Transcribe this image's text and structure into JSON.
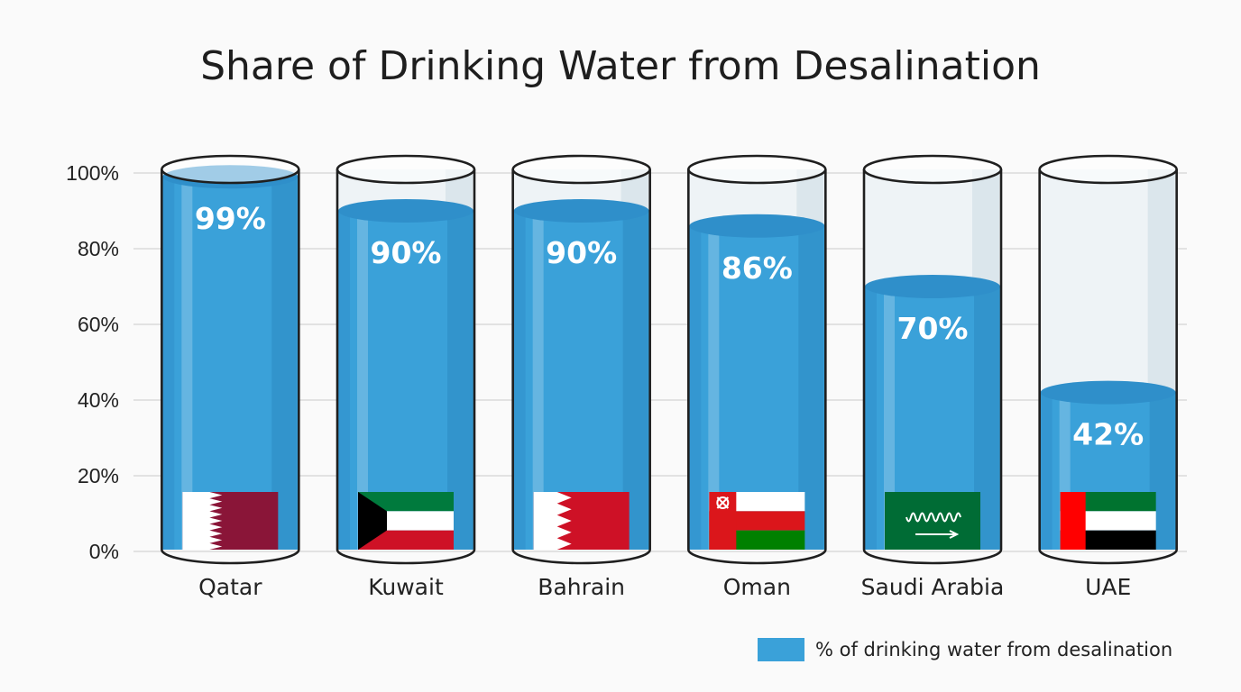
{
  "chart_data": {
    "type": "bar",
    "title": "Share of Drinking Water from Desalination",
    "categories": [
      "Qatar",
      "Kuwait",
      "Bahrain",
      "Oman",
      "Saudi Arabia",
      "UAE"
    ],
    "series": [
      {
        "name": "% of drinking water from desalination",
        "values": [
          99,
          90,
          90,
          86,
          70,
          42
        ],
        "labels": [
          "99%",
          "90%",
          "90%",
          "86%",
          "70%",
          "42%"
        ]
      }
    ],
    "ylim": [
      0,
      100
    ],
    "yticks": [
      0,
      20,
      40,
      60,
      80,
      100
    ],
    "ytick_labels": [
      "0%",
      "20%",
      "40%",
      "60%",
      "80%",
      "100%"
    ],
    "grid": true,
    "legend_position": "bottom-right",
    "flags": [
      "qatar-flag-icon",
      "kuwait-flag-icon",
      "bahrain-flag-icon",
      "oman-flag-icon",
      "saudi-arabia-flag-icon",
      "uae-flag-icon"
    ],
    "colors": {
      "water": "#3aa1d9",
      "water_top": "#2f8fca",
      "glass_outline": "#1f1f1f",
      "grid": "#d4d4d4"
    }
  }
}
